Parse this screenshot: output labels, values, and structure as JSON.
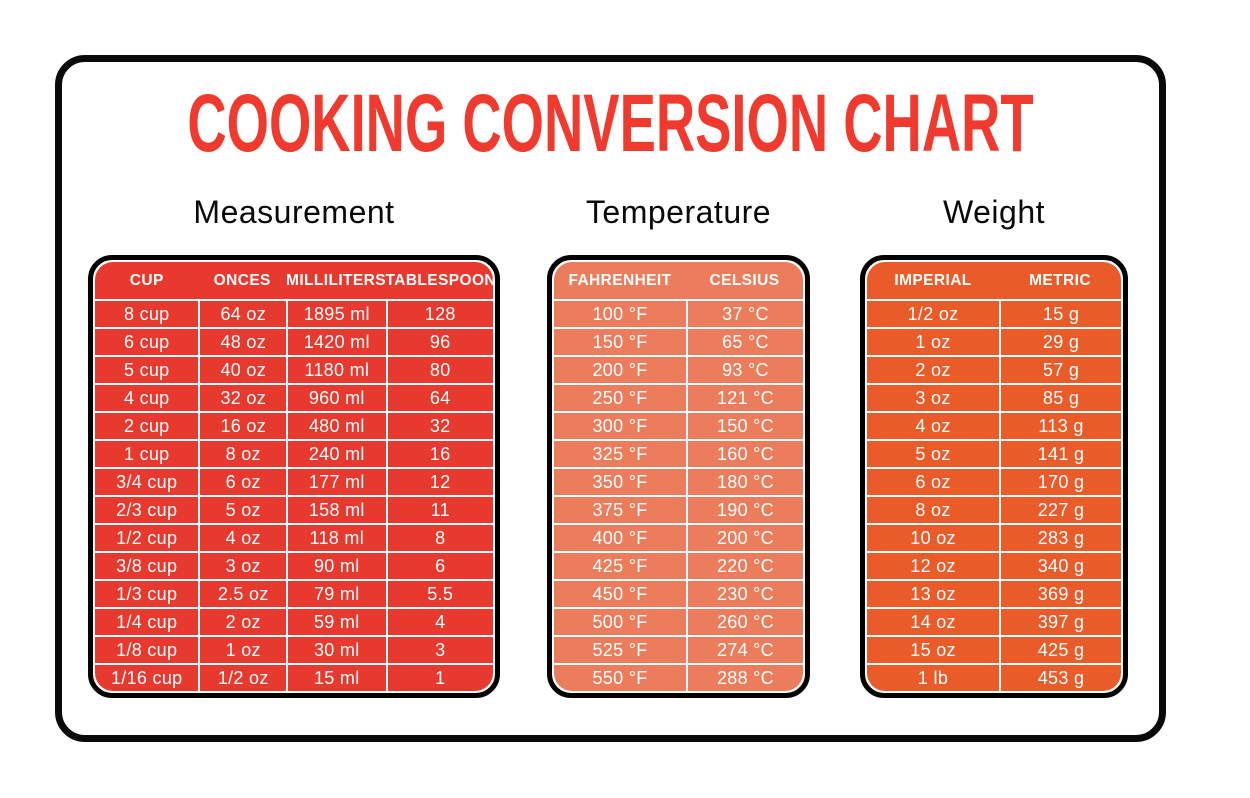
{
  "title": "COOKING CONVERSION CHART",
  "colors": {
    "title_red": "#EF3A2D",
    "measurement_red": "#E8392E",
    "temperature_salmon": "#EB7D5C",
    "weight_orange": "#E95C2A",
    "frame_black": "#0a0a0a",
    "table_text_white": "#ffffff"
  },
  "chart_data": [
    {
      "type": "table",
      "title": "Measurement",
      "color": "#E8392E",
      "columns": [
        "CUP",
        "ONCES",
        "MILLILITERS",
        "TABLESPOONS"
      ],
      "rows": [
        [
          "8 cup",
          "64 oz",
          "1895 ml",
          "128"
        ],
        [
          "6 cup",
          "48 oz",
          "1420 ml",
          "96"
        ],
        [
          "5 cup",
          "40 oz",
          "1180 ml",
          "80"
        ],
        [
          "4 cup",
          "32 oz",
          "960 ml",
          "64"
        ],
        [
          "2 cup",
          "16 oz",
          "480 ml",
          "32"
        ],
        [
          "1 cup",
          "8 oz",
          "240 ml",
          "16"
        ],
        [
          "3/4 cup",
          "6 oz",
          "177 ml",
          "12"
        ],
        [
          "2/3 cup",
          "5 oz",
          "158 ml",
          "11"
        ],
        [
          "1/2 cup",
          "4 oz",
          "118 ml",
          "8"
        ],
        [
          "3/8 cup",
          "3 oz",
          "90 ml",
          "6"
        ],
        [
          "1/3 cup",
          "2.5 oz",
          "79 ml",
          "5.5"
        ],
        [
          "1/4 cup",
          "2 oz",
          "59 ml",
          "4"
        ],
        [
          "1/8 cup",
          "1 oz",
          "30 ml",
          "3"
        ],
        [
          "1/16 cup",
          "1/2 oz",
          "15 ml",
          "1"
        ]
      ]
    },
    {
      "type": "table",
      "title": "Temperature",
      "color": "#EB7D5C",
      "columns": [
        "FAHRENHEIT",
        "CELSIUS"
      ],
      "rows": [
        [
          "100 °F",
          "37 °C"
        ],
        [
          "150 °F",
          "65 °C"
        ],
        [
          "200 °F",
          "93 °C"
        ],
        [
          "250 °F",
          "121 °C"
        ],
        [
          "300 °F",
          "150 °C"
        ],
        [
          "325 °F",
          "160 °C"
        ],
        [
          "350 °F",
          "180 °C"
        ],
        [
          "375 °F",
          "190 °C"
        ],
        [
          "400 °F",
          "200 °C"
        ],
        [
          "425 °F",
          "220 °C"
        ],
        [
          "450 °F",
          "230 °C"
        ],
        [
          "500 °F",
          "260 °C"
        ],
        [
          "525 °F",
          "274 °C"
        ],
        [
          "550 °F",
          "288 °C"
        ]
      ]
    },
    {
      "type": "table",
      "title": "Weight",
      "color": "#E95C2A",
      "columns": [
        "IMPERIAL",
        "METRIC"
      ],
      "rows": [
        [
          "1/2 oz",
          "15 g"
        ],
        [
          "1 oz",
          "29 g"
        ],
        [
          "2 oz",
          "57 g"
        ],
        [
          "3 oz",
          "85 g"
        ],
        [
          "4 oz",
          "113 g"
        ],
        [
          "5 oz",
          "141 g"
        ],
        [
          "6 oz",
          "170 g"
        ],
        [
          "8 oz",
          "227 g"
        ],
        [
          "10 oz",
          "283 g"
        ],
        [
          "12 oz",
          "340 g"
        ],
        [
          "13 oz",
          "369 g"
        ],
        [
          "14 oz",
          "397 g"
        ],
        [
          "15 oz",
          "425 g"
        ],
        [
          "1 lb",
          "453 g"
        ]
      ]
    }
  ]
}
